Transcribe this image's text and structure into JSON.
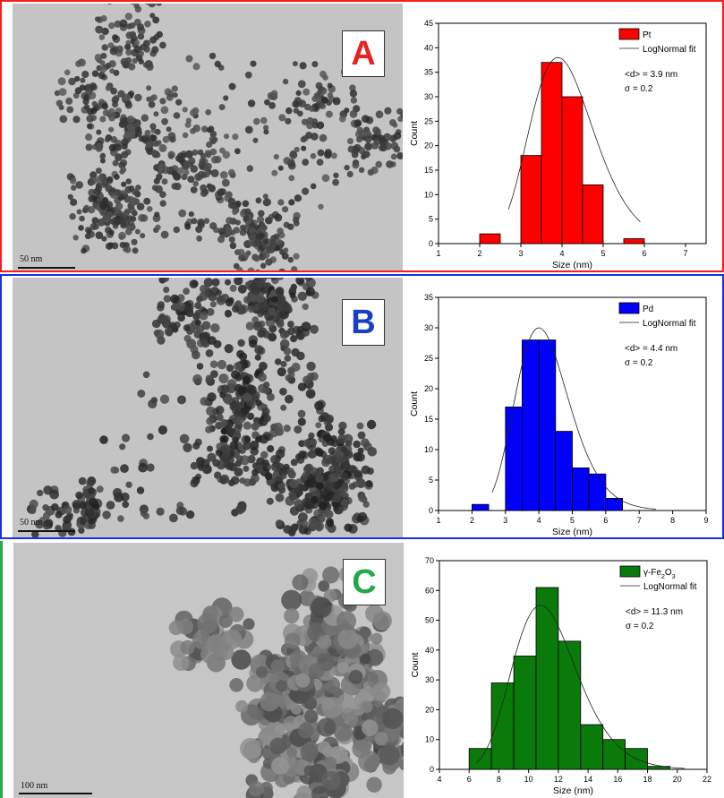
{
  "panels": [
    {
      "label": "A",
      "label_color": "#e8231f",
      "frame_color": "#ff1a1a",
      "scale_bar": "50 nm",
      "tem_tone": "dark-fine"
    },
    {
      "label": "B",
      "label_color": "#1a3fc4",
      "frame_color": "#1a2fe0",
      "scale_bar": "50 nm",
      "tem_tone": "dark-medium"
    },
    {
      "label": "C",
      "label_color": "#22a84a",
      "frame_color": "#2aa84a",
      "scale_bar": "100 nm",
      "tem_tone": "grey-large"
    }
  ],
  "chart_data": [
    {
      "type": "bar",
      "bar_color": "#ff0000",
      "legend_label": "Pt",
      "fit_label": "LogNormal fit",
      "annotation_mean": "<d> = 3.9 nm",
      "annotation_sigma": "σ = 0.2",
      "xlabel": "Size (nm)",
      "ylabel": "Count",
      "xlim": [
        1,
        7.5
      ],
      "ylim": [
        0,
        45
      ],
      "xticks": [
        1,
        2,
        3,
        4,
        5,
        6,
        7
      ],
      "yticks": [
        0,
        5,
        10,
        15,
        20,
        25,
        30,
        35,
        40,
        45
      ],
      "bin_width": 0.5,
      "bins": [
        {
          "x0": 2.0,
          "count": 2
        },
        {
          "x0": 2.5,
          "count": 0
        },
        {
          "x0": 3.0,
          "count": 18
        },
        {
          "x0": 3.5,
          "count": 37
        },
        {
          "x0": 4.0,
          "count": 30
        },
        {
          "x0": 4.5,
          "count": 12
        },
        {
          "x0": 5.0,
          "count": 0
        },
        {
          "x0": 5.5,
          "count": 1
        }
      ],
      "fit": {
        "peak_x": 3.9,
        "peak_y": 38,
        "x_from": 2.7,
        "x_to": 5.9
      }
    },
    {
      "type": "bar",
      "bar_color": "#0000ff",
      "legend_label": "Pd",
      "fit_label": "LogNormal fit",
      "annotation_mean": "<d> = 4.4 nm",
      "annotation_sigma": "σ = 0.2",
      "xlabel": "Size (nm)",
      "ylabel": "Count",
      "xlim": [
        1,
        9
      ],
      "ylim": [
        0,
        35
      ],
      "xticks": [
        1,
        2,
        3,
        4,
        5,
        6,
        7,
        8,
        9
      ],
      "yticks": [
        0,
        5,
        10,
        15,
        20,
        25,
        30,
        35
      ],
      "bin_width": 0.5,
      "bins": [
        {
          "x0": 2.0,
          "count": 1
        },
        {
          "x0": 2.5,
          "count": 0
        },
        {
          "x0": 3.0,
          "count": 17
        },
        {
          "x0": 3.5,
          "count": 28
        },
        {
          "x0": 4.0,
          "count": 28
        },
        {
          "x0": 4.5,
          "count": 13
        },
        {
          "x0": 5.0,
          "count": 7
        },
        {
          "x0": 5.5,
          "count": 6
        },
        {
          "x0": 6.0,
          "count": 2
        }
      ],
      "fit": {
        "peak_x": 4.0,
        "peak_y": 30,
        "x_from": 2.6,
        "x_to": 7.5
      }
    },
    {
      "type": "bar",
      "bar_color": "#0a7a0a",
      "legend_label": "γ-Fe2O3",
      "fit_label": "LogNormal fit",
      "annotation_mean": "<d> = 11.3 nm",
      "annotation_sigma": "σ = 0.2",
      "xlabel": "Size (nm)",
      "ylabel": "Count",
      "xlim": [
        4,
        22
      ],
      "ylim": [
        0,
        70
      ],
      "xticks": [
        4,
        6,
        8,
        10,
        12,
        14,
        16,
        18,
        20,
        22
      ],
      "yticks": [
        0,
        10,
        20,
        30,
        40,
        50,
        60,
        70
      ],
      "bin_width": 1.5,
      "bins": [
        {
          "x0": 6.0,
          "count": 7
        },
        {
          "x0": 7.5,
          "count": 29
        },
        {
          "x0": 9.0,
          "count": 38
        },
        {
          "x0": 10.5,
          "count": 61
        },
        {
          "x0": 12.0,
          "count": 43
        },
        {
          "x0": 13.5,
          "count": 15
        },
        {
          "x0": 15.0,
          "count": 10
        },
        {
          "x0": 16.5,
          "count": 7
        },
        {
          "x0": 18.0,
          "count": 1
        }
      ],
      "fit": {
        "peak_x": 10.8,
        "peak_y": 55,
        "x_from": 6.5,
        "x_to": 20.5
      }
    }
  ]
}
